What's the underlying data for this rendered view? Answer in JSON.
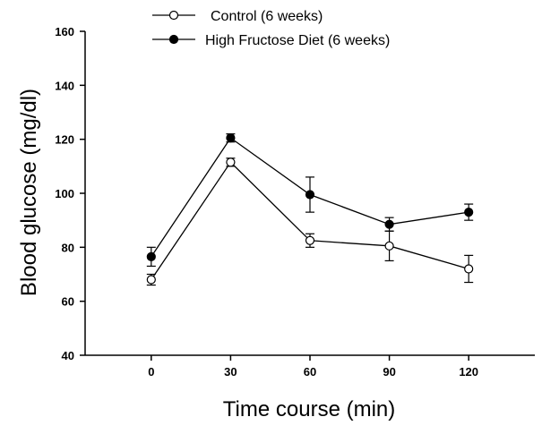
{
  "chart_data": {
    "type": "line",
    "title": "",
    "xlabel": "Time course (min)",
    "ylabel": "Blood glucose (mg/dl)",
    "x": [
      0,
      30,
      60,
      90,
      120
    ],
    "x_tick_labels": [
      "0",
      "30",
      "60",
      "90",
      "120"
    ],
    "xlim": [
      -25,
      145
    ],
    "ylim": [
      40,
      160
    ],
    "y_ticks": [
      40,
      60,
      80,
      100,
      120,
      140,
      160
    ],
    "y_tick_labels": [
      "40",
      "60",
      "80",
      "100",
      "120",
      "140",
      "160"
    ],
    "grid": false,
    "legend_position": "top-center",
    "series": [
      {
        "name": "Control (6 weeks)",
        "marker": "open-circle",
        "color": "#000000",
        "values": [
          68,
          111.5,
          82.5,
          80.5,
          72
        ],
        "errors": [
          2,
          1.5,
          2.5,
          5.5,
          5
        ]
      },
      {
        "name": "High Fructose Diet (6 weeks)",
        "marker": "filled-circle",
        "color": "#000000",
        "values": [
          76.5,
          120.5,
          99.5,
          88.5,
          93
        ],
        "errors": [
          3.5,
          1.5,
          6.5,
          2.5,
          3
        ]
      }
    ]
  }
}
